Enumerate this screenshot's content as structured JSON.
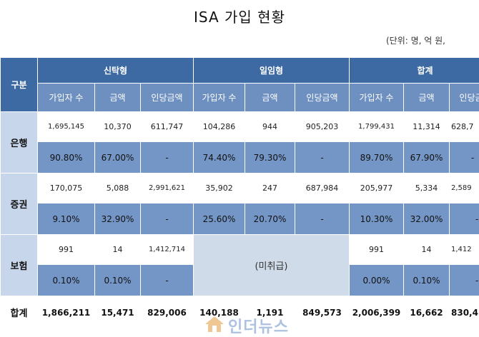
{
  "title": "ISA 가입 현황",
  "unit": "(단위: 명, 억 원,",
  "headers": {
    "category": "구분",
    "groups": [
      "신탁형",
      "일임형",
      "합계"
    ],
    "subs": [
      "가입자 수",
      "금액",
      "인당금액",
      "가입자 수",
      "금액",
      "인당금액",
      "가입자 수",
      "금액",
      "인당금액"
    ]
  },
  "rows": {
    "bank": {
      "label": "은행",
      "values": [
        "1,695,145",
        "10,370",
        "611,747",
        "104,286",
        "944",
        "905,203",
        "1,799,431",
        "11,314",
        "628,7"
      ],
      "pcts": [
        "90.80%",
        "67.00%",
        "-",
        "74.40%",
        "79.30%",
        "-",
        "89.70%",
        "67.90%",
        "-"
      ]
    },
    "securities": {
      "label": "증권",
      "values": [
        "170,075",
        "5,088",
        "2,991,621",
        "35,902",
        "247",
        "687,984",
        "205,977",
        "5,334",
        "2,589"
      ],
      "pcts": [
        "9.10%",
        "32.90%",
        "-",
        "25.60%",
        "20.70%",
        "-",
        "10.30%",
        "32.00%",
        "-"
      ]
    },
    "insurance": {
      "label": "보험",
      "values": [
        "991",
        "14",
        "1,412,714",
        "991",
        "14",
        "1,412"
      ],
      "pcts": [
        "0.10%",
        "0.10%",
        "-",
        "0.00%",
        "0.10%",
        "-"
      ],
      "discretionary_note": "(미취급)"
    },
    "total": {
      "label": "합계",
      "values": [
        "1,866,211",
        "15,471",
        "829,006",
        "140,188",
        "1,191",
        "849,573",
        "2,006,399",
        "16,662",
        "830,4"
      ]
    }
  },
  "watermark": {
    "text": "인더뉴스",
    "icon": "house-logo-icon"
  }
}
